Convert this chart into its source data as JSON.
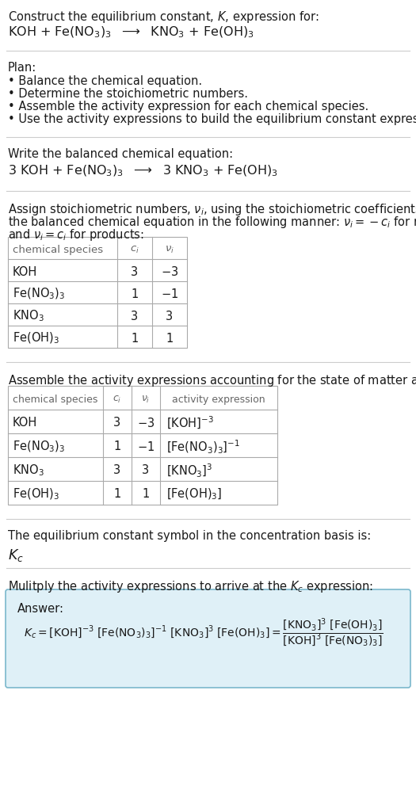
{
  "title_line1": "Construct the equilibrium constant, $K$, expression for:",
  "title_line2": "KOH + Fe(NO$_3$)$_3$  $\\longrightarrow$  KNO$_3$ + Fe(OH)$_3$",
  "plan_header": "Plan:",
  "plan_bullets": [
    "• Balance the chemical equation.",
    "• Determine the stoichiometric numbers.",
    "• Assemble the activity expression for each chemical species.",
    "• Use the activity expressions to build the equilibrium constant expression."
  ],
  "balanced_eq_header": "Write the balanced chemical equation:",
  "balanced_eq": "3 KOH + Fe(NO$_3$)$_3$  $\\longrightarrow$  3 KNO$_3$ + Fe(OH)$_3$",
  "stoich_intro1": "Assign stoichiometric numbers, $\\nu_i$, using the stoichiometric coefficients, $c_i$, from",
  "stoich_intro2": "the balanced chemical equation in the following manner: $\\nu_i = -c_i$ for reactants",
  "stoich_intro3": "and $\\nu_i = c_i$ for products:",
  "table1_headers": [
    "chemical species",
    "$c_i$",
    "$\\nu_i$"
  ],
  "table1_rows": [
    [
      "KOH",
      "3",
      "$-3$"
    ],
    [
      "Fe(NO$_3$)$_3$",
      "1",
      "$-1$"
    ],
    [
      "KNO$_3$",
      "3",
      "3"
    ],
    [
      "Fe(OH)$_3$",
      "1",
      "1"
    ]
  ],
  "activity_intro": "Assemble the activity expressions accounting for the state of matter and $\\nu_i$:",
  "table2_headers": [
    "chemical species",
    "$c_i$",
    "$\\nu_i$",
    "activity expression"
  ],
  "table2_rows": [
    [
      "KOH",
      "3",
      "$-3$",
      "[KOH]$^{-3}$"
    ],
    [
      "Fe(NO$_3$)$_3$",
      "1",
      "$-1$",
      "[Fe(NO$_3$)$_3$]$^{-1}$"
    ],
    [
      "KNO$_3$",
      "3",
      "3",
      "[KNO$_3$]$^3$"
    ],
    [
      "Fe(OH)$_3$",
      "1",
      "1",
      "[Fe(OH)$_3$]"
    ]
  ],
  "kc_text": "The equilibrium constant symbol in the concentration basis is:",
  "kc_symbol": "$K_c$",
  "multiply_text": "Mulitply the activity expressions to arrive at the $K_c$ expression:",
  "answer_label": "Answer:",
  "bg_color": "#ffffff",
  "text_color": "#1a1a1a",
  "gray_color": "#666666",
  "table_border_color": "#aaaaaa",
  "answer_box_bg": "#dff0f7",
  "answer_box_border": "#7bb8cc",
  "sep_color": "#cccccc",
  "fs_main": 10.5,
  "fs_small": 9.5,
  "fs_title2": 11.5
}
